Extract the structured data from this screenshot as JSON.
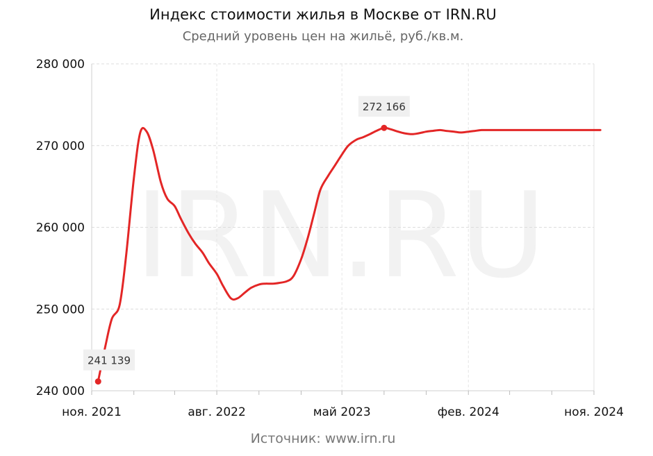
{
  "title": "Индекс стоимости жилья в Москве от IRN.RU",
  "subtitle": "Средний уровень цен на жильё, руб./кв.м.",
  "source": "Источник: www.irn.ru",
  "watermark": "IRN.RU",
  "line_color": "#e32626",
  "chart_data": {
    "type": "line",
    "title": "Индекс стоимости жилья в Москве от IRN.RU",
    "subtitle": "Средний уровень цен на жильё, руб./кв.м.",
    "xlabel": "",
    "ylabel": "",
    "ylim": [
      240000,
      280000
    ],
    "yticks": [
      240000,
      250000,
      260000,
      270000,
      280000
    ],
    "ytick_labels": [
      "240 000",
      "250 000",
      "260 000",
      "270 000",
      "280 000"
    ],
    "xlim": [
      "2021-11",
      "2024-11"
    ],
    "xticks": [
      "2021-11",
      "2022-08",
      "2023-05",
      "2024-02",
      "2024-11"
    ],
    "xtick_labels": [
      "ноя. 2021",
      "авг. 2022",
      "май 2023",
      "фев. 2024",
      "ноя. 2024"
    ],
    "grid": true,
    "series": [
      {
        "name": "",
        "x": [
          "2021-11-15",
          "2021-12-01",
          "2021-12-15",
          "2022-01-01",
          "2022-01-15",
          "2022-02-01",
          "2022-02-15",
          "2022-03-01",
          "2022-03-15",
          "2022-04-01",
          "2022-04-15",
          "2022-05-01",
          "2022-05-15",
          "2022-06-01",
          "2022-06-15",
          "2022-07-01",
          "2022-07-15",
          "2022-08-01",
          "2022-08-15",
          "2022-09-01",
          "2022-09-15",
          "2022-10-01",
          "2022-10-15",
          "2022-11-01",
          "2022-11-15",
          "2022-12-01",
          "2022-12-15",
          "2023-01-01",
          "2023-01-15",
          "2023-02-01",
          "2023-02-15",
          "2023-03-01",
          "2023-03-15",
          "2023-04-01",
          "2023-04-15",
          "2023-05-01",
          "2023-05-15",
          "2023-06-01",
          "2023-06-15",
          "2023-07-01",
          "2023-07-15",
          "2023-08-01",
          "2023-08-15",
          "2023-09-01",
          "2023-09-15",
          "2023-10-01",
          "2023-10-15",
          "2023-11-01",
          "2023-11-15",
          "2023-12-01",
          "2023-12-15",
          "2024-01-01",
          "2024-01-15",
          "2024-02-01",
          "2024-02-15",
          "2024-03-01",
          "2024-03-15",
          "2024-04-01",
          "2024-04-15",
          "2024-05-01",
          "2024-05-15",
          "2024-06-01",
          "2024-06-15",
          "2024-07-01",
          "2024-07-15",
          "2024-08-01",
          "2024-08-15",
          "2024-09-01",
          "2024-09-15",
          "2024-10-01",
          "2024-10-15",
          "2024-11-01",
          "2024-11-15"
        ],
        "values": [
          241139,
          245500,
          248800,
          250500,
          256500,
          266000,
          271600,
          271700,
          269500,
          265500,
          263500,
          262600,
          261000,
          259200,
          258000,
          256900,
          255600,
          254300,
          252800,
          251300,
          251300,
          252000,
          252600,
          253000,
          253100,
          253100,
          253200,
          253400,
          254000,
          256100,
          258600,
          261600,
          264600,
          266300,
          267500,
          268900,
          270000,
          270700,
          271000,
          271400,
          271800,
          272166,
          272000,
          271700,
          271500,
          271400,
          271500,
          271700,
          271800,
          271900,
          271800,
          271700,
          271600,
          271700,
          271800,
          271900,
          271900,
          271900,
          271900,
          271900,
          271900,
          271900,
          271900,
          271900,
          271900,
          271900,
          271900,
          271900,
          271900,
          271900,
          271900,
          271900,
          271900
        ]
      }
    ],
    "annotations": [
      {
        "x": "2021-11-15",
        "y": 241139,
        "label": "241 139"
      },
      {
        "x": "2023-08-01",
        "y": 272166,
        "label": "272 166"
      }
    ]
  }
}
